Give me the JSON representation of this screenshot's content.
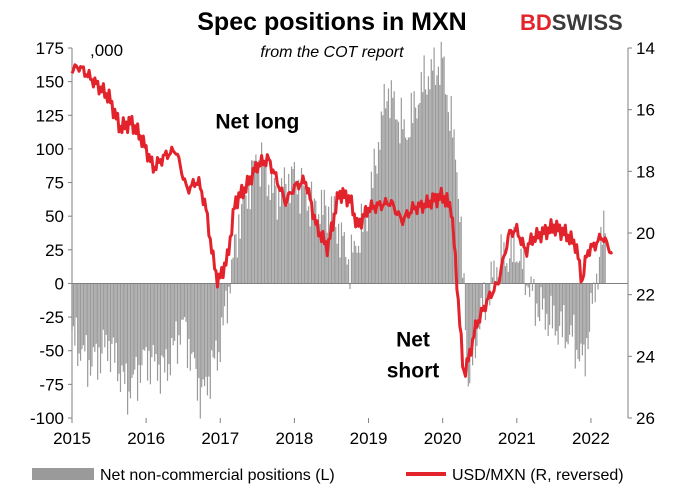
{
  "logo": {
    "part1": "BD",
    "part2": "SWISS"
  },
  "chart_data": {
    "type": "bar+line",
    "title": "Spec positions in MXN",
    "subtitle": "from the COT report",
    "left_axis_unit": ",000",
    "ylim_left": [
      -100,
      175
    ],
    "yticks_left": [
      175,
      150,
      125,
      100,
      75,
      50,
      25,
      0,
      -25,
      -50,
      -75,
      -100
    ],
    "ylim_right": [
      14,
      26
    ],
    "right_axis_reversed": true,
    "yticks_right": [
      14,
      16,
      18,
      20,
      22,
      24,
      26
    ],
    "xlim": [
      2015,
      2022.5
    ],
    "xticks": [
      "2015",
      "2016",
      "2017",
      "2018",
      "2019",
      "2020",
      "2021",
      "2022"
    ],
    "grid": false,
    "legend_position": "bottom",
    "annotations": [
      {
        "text": "Net long",
        "x": 2017.5,
        "y": 115
      },
      {
        "text": "Net",
        "x": 2019.6,
        "y": -47
      },
      {
        "text": "short",
        "x": 2019.6,
        "y": -70
      }
    ],
    "series": [
      {
        "name": "Net non-commercial positions (L)",
        "kind": "bar",
        "color": "#9a9a9a",
        "points": [
          [
            2015.0,
            -40
          ],
          [
            2015.25,
            -60
          ],
          [
            2015.5,
            -45
          ],
          [
            2015.75,
            -80
          ],
          [
            2016.0,
            -55
          ],
          [
            2016.25,
            -65
          ],
          [
            2016.5,
            -30
          ],
          [
            2016.75,
            -85
          ],
          [
            2017.0,
            -45
          ],
          [
            2017.25,
            45
          ],
          [
            2017.5,
            95
          ],
          [
            2017.75,
            65
          ],
          [
            2018.0,
            80
          ],
          [
            2018.25,
            55
          ],
          [
            2018.5,
            55
          ],
          [
            2018.75,
            15
          ],
          [
            2019.0,
            55
          ],
          [
            2019.25,
            145
          ],
          [
            2019.5,
            110
          ],
          [
            2019.75,
            150
          ],
          [
            2020.0,
            165
          ],
          [
            2020.2,
            85
          ],
          [
            2020.35,
            -75
          ],
          [
            2020.5,
            -25
          ],
          [
            2020.75,
            15
          ],
          [
            2021.0,
            25
          ],
          [
            2021.25,
            -15
          ],
          [
            2021.5,
            -30
          ],
          [
            2021.75,
            -40
          ],
          [
            2021.9,
            -60
          ],
          [
            2022.05,
            -5
          ],
          [
            2022.2,
            50
          ]
        ]
      },
      {
        "name": "USD/MXN (R, reversed)",
        "kind": "line",
        "color": "#e3232c",
        "points": [
          [
            2015.0,
            14.7
          ],
          [
            2015.1,
            14.6
          ],
          [
            2015.3,
            15.1
          ],
          [
            2015.5,
            15.6
          ],
          [
            2015.65,
            16.6
          ],
          [
            2015.8,
            16.4
          ],
          [
            2015.95,
            17.0
          ],
          [
            2016.1,
            17.9
          ],
          [
            2016.25,
            17.5
          ],
          [
            2016.4,
            17.3
          ],
          [
            2016.55,
            18.6
          ],
          [
            2016.7,
            18.3
          ],
          [
            2016.8,
            19.1
          ],
          [
            2016.9,
            20.8
          ],
          [
            2016.97,
            21.6
          ],
          [
            2017.1,
            20.8
          ],
          [
            2017.2,
            19.0
          ],
          [
            2017.35,
            18.5
          ],
          [
            2017.5,
            17.8
          ],
          [
            2017.65,
            17.6
          ],
          [
            2017.75,
            18.2
          ],
          [
            2017.88,
            19.0
          ],
          [
            2018.0,
            18.5
          ],
          [
            2018.15,
            18.3
          ],
          [
            2018.3,
            19.8
          ],
          [
            2018.45,
            20.5
          ],
          [
            2018.6,
            18.7
          ],
          [
            2018.75,
            18.9
          ],
          [
            2018.85,
            19.8
          ],
          [
            2019.0,
            19.2
          ],
          [
            2019.15,
            19.1
          ],
          [
            2019.3,
            19.0
          ],
          [
            2019.45,
            19.6
          ],
          [
            2019.6,
            19.2
          ],
          [
            2019.75,
            19.1
          ],
          [
            2019.9,
            18.9
          ],
          [
            2020.0,
            18.8
          ],
          [
            2020.12,
            19.2
          ],
          [
            2020.22,
            22.5
          ],
          [
            2020.28,
            24.6
          ],
          [
            2020.35,
            24.1
          ],
          [
            2020.45,
            23.0
          ],
          [
            2020.6,
            22.2
          ],
          [
            2020.75,
            21.6
          ],
          [
            2020.9,
            20.0
          ],
          [
            2021.0,
            19.9
          ],
          [
            2021.12,
            20.6
          ],
          [
            2021.2,
            20.2
          ],
          [
            2021.35,
            20.0
          ],
          [
            2021.5,
            19.8
          ],
          [
            2021.65,
            20.0
          ],
          [
            2021.8,
            20.4
          ],
          [
            2021.88,
            21.6
          ],
          [
            2021.95,
            20.6
          ],
          [
            2022.05,
            20.4
          ],
          [
            2022.15,
            20.1
          ],
          [
            2022.25,
            20.5
          ],
          [
            2022.3,
            20.8
          ]
        ]
      }
    ]
  }
}
